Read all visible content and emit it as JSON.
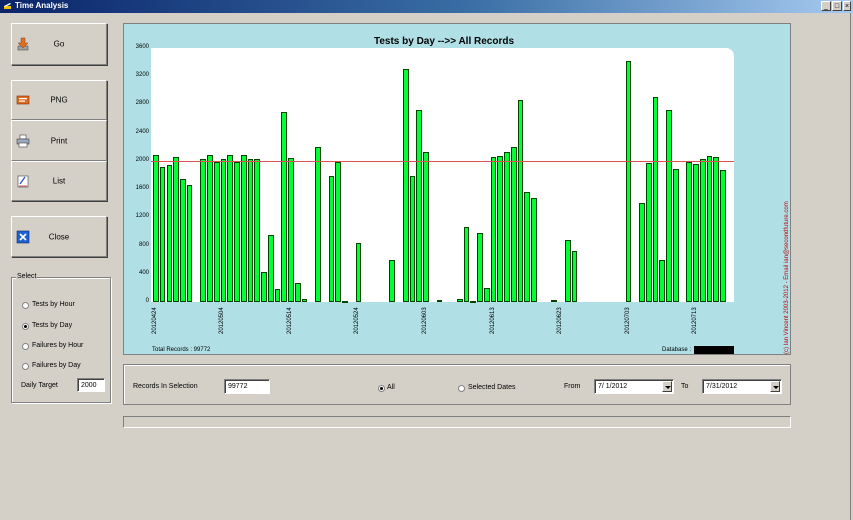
{
  "window": {
    "title": "Time Analysis",
    "controls": [
      "_",
      "□",
      "×"
    ]
  },
  "buttons": {
    "go": "Go",
    "png": "PNG",
    "print": "Print",
    "list": "List",
    "close": "Close"
  },
  "select_group": {
    "title": "Select",
    "options": [
      "Tests by Hour",
      "Tests by Day",
      "Failures by Hour",
      "Failures by Day"
    ],
    "selected": 1,
    "daily_target_label": "Daily Target",
    "daily_target_value": "2000"
  },
  "chart_data": {
    "type": "bar",
    "title": "Tests by Day -->> All Records",
    "ylim": [
      0,
      3600
    ],
    "y_ticks": [
      0,
      400,
      800,
      1200,
      1600,
      2000,
      2400,
      2800,
      3200,
      3600
    ],
    "target": 2000,
    "x_tick_labels": [
      "20120424",
      "20120504",
      "20120514",
      "20120524",
      "20120603",
      "20120613",
      "20120623",
      "20120703",
      "20120713"
    ],
    "values": [
      2080,
      1920,
      1940,
      2050,
      1750,
      1660,
      0,
      2030,
      2080,
      1980,
      2020,
      2080,
      1990,
      2090,
      2030,
      2030,
      420,
      950,
      180,
      2700,
      2040,
      270,
      40,
      0,
      2200,
      0,
      1790,
      1980,
      20,
      0,
      830,
      0,
      0,
      0,
      0,
      590,
      0,
      3300,
      1780,
      2720,
      2120,
      0,
      30,
      0,
      0,
      40,
      1060,
      20,
      980,
      200,
      2060,
      2070,
      2120,
      2190,
      2870,
      1560,
      1470,
      0,
      0,
      30,
      0,
      880,
      720,
      0,
      0,
      0,
      0,
      0,
      0,
      0,
      3420,
      0,
      1410,
      1970,
      2900,
      590,
      2720,
      1880,
      0,
      1980,
      1950,
      2020,
      2070,
      2050,
      1870
    ],
    "bar_color": "#00ff33",
    "target_color": "#e05050",
    "legend": "none",
    "grid": false
  },
  "chart_footer": {
    "total_records": "Total Records : 99772",
    "database_label": "Database :",
    "copyright": "(c) Ian Vincent 2003-2012 - Email ian@secondfuture.com"
  },
  "options_panel": {
    "records_label": "Records In Selection",
    "records_value": "99772",
    "all_label": "All",
    "selected_dates_label": "Selected Dates",
    "from_label": "From",
    "from_value": "7/ 1/2012",
    "to_label": "To",
    "to_value": "7/31/2012"
  },
  "colors": {
    "title_bar": "#0a246a",
    "chart_background": "#b0e0e6",
    "window_background": "#d4d0c8"
  }
}
